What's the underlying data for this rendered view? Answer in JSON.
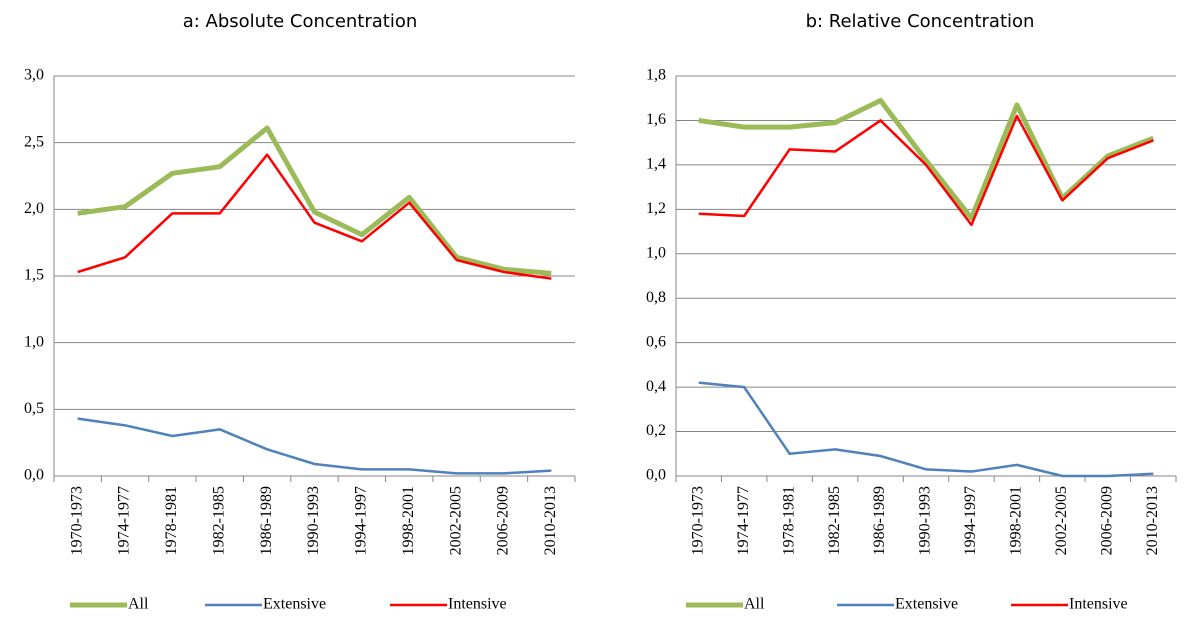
{
  "chart_data": [
    {
      "type": "line",
      "title": "a: Absolute Concentration",
      "categories": [
        "1970-1973",
        "1974-1977",
        "1978-1981",
        "1982-1985",
        "1986-1989",
        "1990-1993",
        "1994-1997",
        "1998-2001",
        "2002-2005",
        "2006-2009",
        "2010-2013"
      ],
      "series": [
        {
          "name": "All",
          "color": "#9bbb59",
          "values": [
            1.97,
            2.02,
            2.27,
            2.32,
            2.61,
            1.98,
            1.81,
            2.09,
            1.64,
            1.55,
            1.52
          ]
        },
        {
          "name": "Extensive",
          "color": "#4f81bd",
          "values": [
            0.43,
            0.38,
            0.3,
            0.35,
            0.2,
            0.09,
            0.05,
            0.05,
            0.02,
            0.02,
            0.04
          ]
        },
        {
          "name": "Intensive",
          "color": "#ff0000",
          "values": [
            1.53,
            1.64,
            1.97,
            1.97,
            2.41,
            1.9,
            1.76,
            2.05,
            1.62,
            1.53,
            1.48
          ]
        }
      ],
      "ylim": [
        0,
        3
      ],
      "yticks": [
        {
          "value": 0,
          "label": "0,0"
        },
        {
          "value": 0.5,
          "label": "0,5"
        },
        {
          "value": 1,
          "label": "1,0"
        },
        {
          "value": 1.5,
          "label": "1,5"
        },
        {
          "value": 2,
          "label": "2,0"
        },
        {
          "value": 2.5,
          "label": "2,5"
        },
        {
          "value": 3,
          "label": "3,0"
        }
      ],
      "grid": true,
      "legend": "bottom"
    },
    {
      "type": "line",
      "title": "b: Relative Concentration",
      "categories": [
        "1970-1973",
        "1974-1977",
        "1978-1981",
        "1982-1985",
        "1986-1989",
        "1990-1993",
        "1994-1997",
        "1998-2001",
        "2002-2005",
        "2006-2009",
        "2010-2013"
      ],
      "series": [
        {
          "name": "All",
          "color": "#9bbb59",
          "values": [
            1.6,
            1.57,
            1.57,
            1.59,
            1.69,
            1.42,
            1.16,
            1.67,
            1.25,
            1.44,
            1.52
          ]
        },
        {
          "name": "Extensive",
          "color": "#4f81bd",
          "values": [
            0.42,
            0.4,
            0.1,
            0.12,
            0.09,
            0.03,
            0.02,
            0.05,
            0.0,
            0.0,
            0.01
          ]
        },
        {
          "name": "Intensive",
          "color": "#ff0000",
          "values": [
            1.18,
            1.17,
            1.47,
            1.46,
            1.6,
            1.4,
            1.13,
            1.62,
            1.24,
            1.43,
            1.51
          ]
        }
      ],
      "ylim": [
        0,
        1.8
      ],
      "yticks": [
        {
          "value": 0,
          "label": "0,0"
        },
        {
          "value": 0.2,
          "label": "0,2"
        },
        {
          "value": 0.4,
          "label": "0,4"
        },
        {
          "value": 0.6,
          "label": "0,6"
        },
        {
          "value": 0.8,
          "label": "0,8"
        },
        {
          "value": 1,
          "label": "1,0"
        },
        {
          "value": 1.2,
          "label": "1,2"
        },
        {
          "value": 1.4,
          "label": "1,4"
        },
        {
          "value": 1.6,
          "label": "1,6"
        },
        {
          "value": 1.8,
          "label": "1,8"
        }
      ],
      "grid": true,
      "legend": "bottom"
    }
  ]
}
